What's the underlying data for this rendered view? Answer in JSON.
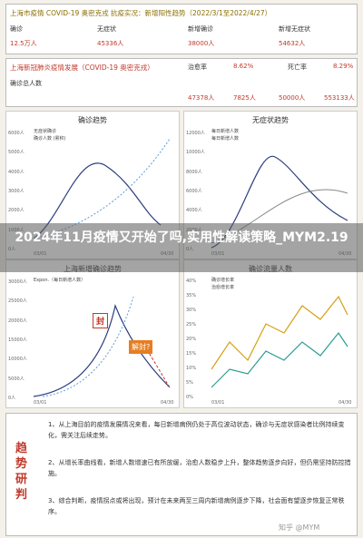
{
  "header": {
    "title": "上海市疫情 COVID-19 奥密克戎 抗疫实况：新增阳性趋势（2022/3/1至2022/4/27）",
    "stats": [
      "确诊",
      "无症状",
      "新增确诊",
      "新增无症状"
    ],
    "values": [
      "12.5万人",
      "45336人",
      "38000人",
      "54632人"
    ]
  },
  "summary": {
    "title": "上海新冠肺炎疫情发展（COVID-19 奥密克戎）",
    "labels": [
      "确诊总人数",
      "治愈率",
      "死亡率"
    ],
    "values": [
      "8.62%",
      "8.29%"
    ],
    "stats": [
      "47378人",
      "7825人",
      "50000人",
      "553133人"
    ]
  },
  "charts": [
    {
      "title": "确诊趋势",
      "legend": [
        "无症状确诊",
        "确诊人数 (累积)"
      ],
      "yticks": [
        "6000人",
        "5000人",
        "4000人",
        "3000人",
        "2000人",
        "1000人",
        "0人"
      ],
      "dates": [
        "03/01",
        "04/30"
      ]
    },
    {
      "title": "无症状趋势",
      "legend": [
        "每日新增人数",
        "每日新增人数"
      ],
      "yticks": [
        "12000人",
        "10000人",
        "8000人",
        "6000人",
        "4000人",
        "2000人",
        "0人"
      ],
      "dates": [
        "03/01",
        "04/30"
      ]
    },
    {
      "title": "上海新增确诊趋势",
      "legend": [
        "Expon.（每日新增人数）"
      ],
      "yticks": [
        "30000人",
        "25000人",
        "20000人",
        "15000人",
        "10000人",
        "5000人",
        "0人"
      ],
      "dates": [
        "03/01",
        "04/30"
      ],
      "marks": [
        "封",
        "解封?"
      ]
    },
    {
      "title": "确诊流量人数",
      "legend": [
        "确诊增长率",
        "治愈增长率"
      ],
      "yticks": [
        "40%",
        "35%",
        "30%",
        "25%",
        "20%",
        "15%",
        "10%",
        "5%",
        "0%"
      ],
      "dates": [
        "03/01",
        "04/30"
      ]
    }
  ],
  "overlay": {
    "title": "2024年11月疫情又开始了吗,实用性解读策略_MYM2.19"
  },
  "analysis": {
    "label": "趋势研判",
    "paragraphs": [
      "1、从上海目前的疫情发展情况来看，每日新增病例仍处于高位波动状态，确诊与无症状感染者比例持续变化，需关注后续走势。",
      "2、从增长率曲线看，新增人数增速已有所放缓，治愈人数稳步上升，整体趋势逐步向好，但仍需坚持防控措施。",
      "3、综合判断，疫情拐点或将出现，预计在未来两至三周内新增病例逐步下降，社会面有望逐步恢复正常秩序。"
    ],
    "watermark": "知乎 @MYM"
  }
}
